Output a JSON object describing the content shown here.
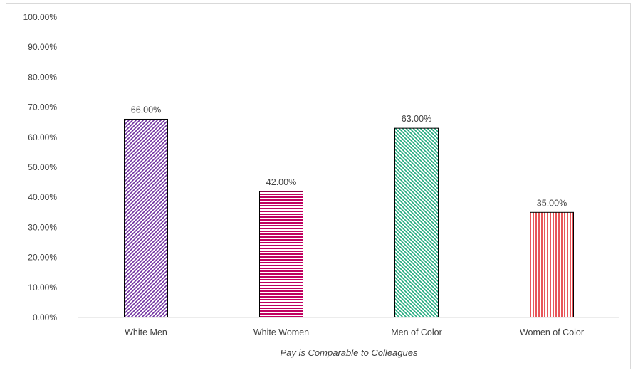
{
  "chart_data": {
    "type": "bar",
    "title": "",
    "xlabel": "Pay is Comparable to Colleagues",
    "ylabel": "",
    "categories": [
      "White Men",
      "White Women",
      "Men of Color",
      "Women of Color"
    ],
    "values": [
      66.0,
      42.0,
      63.0,
      35.0
    ],
    "data_labels": [
      "66.00%",
      "42.00%",
      "63.00%",
      "35.00%"
    ],
    "ylim": [
      0,
      100
    ],
    "yticks": [
      0,
      10,
      20,
      30,
      40,
      50,
      60,
      70,
      80,
      90,
      100
    ],
    "ytick_labels": [
      "0.00%",
      "10.00%",
      "20.00%",
      "30.00%",
      "40.00%",
      "50.00%",
      "60.00%",
      "70.00%",
      "80.00%",
      "90.00%",
      "100.00%"
    ],
    "grid": false,
    "legend": "none",
    "bar_styles": [
      {
        "pattern": "diagonal-up",
        "color": "#7030a0"
      },
      {
        "pattern": "horizontal",
        "color": "#c00060"
      },
      {
        "pattern": "diagonal-down",
        "color": "#1ea97c"
      },
      {
        "pattern": "vertical",
        "color": "#e8575a"
      }
    ]
  }
}
